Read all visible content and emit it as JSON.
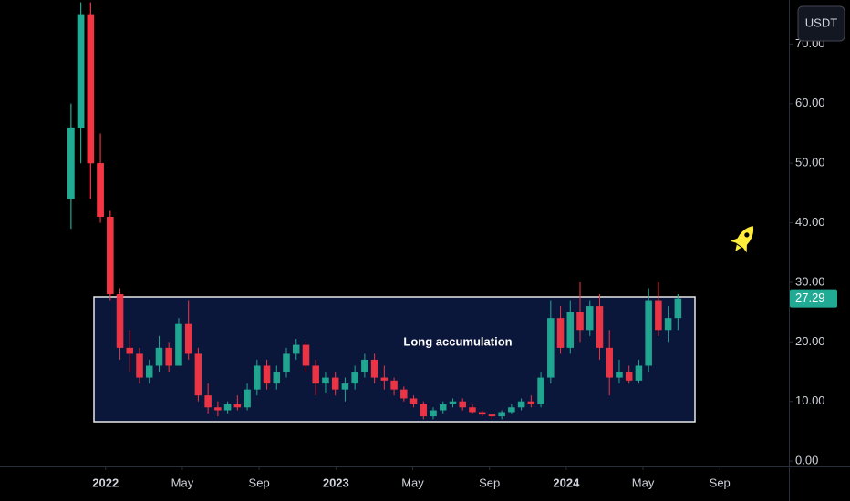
{
  "chart_data": {
    "type": "candlestick",
    "currency": "USDT",
    "annotation": "Long accumulation",
    "up_color": "#22ab94",
    "down_color": "#f23645",
    "x": [
      -1.8,
      -1.29,
      -0.78,
      -0.27,
      0.24,
      0.75,
      1.26,
      1.77,
      2.28,
      2.79,
      3.3,
      3.81,
      4.32,
      4.83,
      5.34,
      5.85,
      6.36,
      6.87,
      7.38,
      7.89,
      8.4,
      8.91,
      9.42,
      9.93,
      10.44,
      10.95,
      11.46,
      11.97,
      12.48,
      12.99,
      13.5,
      14.01,
      14.52,
      15.03,
      15.54,
      16.05,
      16.56,
      17.07,
      17.58,
      18.09,
      18.6,
      19.11,
      19.62,
      20.13,
      20.64,
      21.15,
      21.66,
      22.17,
      22.68,
      23.19,
      23.7,
      24.21,
      24.72,
      25.23,
      25.74,
      26.25,
      26.76,
      27.27,
      27.78,
      28.29,
      28.8,
      29.31,
      29.82
    ],
    "open": [
      44,
      56,
      75,
      50,
      41,
      28,
      19,
      18,
      14,
      16,
      19,
      16,
      23,
      18,
      11,
      9,
      8.5,
      9.5,
      9,
      12,
      16,
      13,
      15,
      18,
      19.5,
      16,
      13,
      14,
      12,
      13,
      15,
      17,
      14,
      13.5,
      12,
      10.5,
      9.5,
      7.5,
      8.5,
      9.5,
      10,
      9,
      8.2,
      7.8,
      7.5,
      8.2,
      9,
      10,
      9.5,
      14,
      24,
      19,
      25,
      22,
      26,
      19,
      14,
      15,
      13.5,
      16,
      27,
      22,
      24
    ],
    "high": [
      60,
      77,
      77,
      55,
      42,
      29,
      22,
      19,
      17,
      21,
      20,
      24,
      27,
      19,
      13,
      10,
      10,
      11,
      13,
      17,
      17,
      16,
      19,
      20.5,
      20,
      17,
      15,
      15,
      14,
      16,
      18,
      18,
      16,
      14,
      12.5,
      11,
      10,
      9,
      10,
      10.5,
      10.5,
      9.5,
      8.5,
      8,
      8.5,
      9.5,
      10.5,
      11,
      15,
      27,
      26,
      27,
      30,
      27,
      28,
      22,
      17,
      16,
      17,
      29,
      30,
      26,
      28
    ],
    "low": [
      39,
      50,
      44,
      40,
      27,
      17,
      15,
      13,
      13,
      15,
      15,
      16,
      17,
      10,
      8,
      7.5,
      8,
      8.5,
      8.5,
      11,
      12,
      12,
      14,
      17,
      15,
      11,
      11.5,
      11,
      10,
      12,
      14,
      13,
      12,
      11,
      10,
      9,
      7,
      7,
      8,
      9,
      8.5,
      8,
      7.5,
      7,
      7,
      8,
      8.5,
      9,
      9,
      13,
      18,
      18,
      20,
      21,
      17,
      11,
      13,
      13,
      13,
      15,
      21,
      20,
      22
    ],
    "close": [
      56,
      75,
      50,
      41,
      28,
      19,
      18,
      14,
      16,
      19,
      16,
      23,
      18,
      11,
      9,
      8.5,
      9.5,
      9,
      12,
      16,
      13,
      15,
      18,
      19.5,
      16,
      13,
      14,
      12,
      13,
      15,
      17,
      14,
      13.5,
      12,
      10.5,
      9.5,
      7.5,
      8.5,
      9.5,
      10,
      9,
      8.2,
      7.8,
      7.5,
      8.2,
      9,
      10,
      9.5,
      14,
      24,
      19,
      25,
      22,
      26,
      19,
      14,
      15,
      13.5,
      16,
      27,
      22,
      24,
      27.29
    ],
    "xlim": [
      -5.5,
      35.6
    ],
    "xticks": [
      {
        "value": 0,
        "label": "2022"
      },
      {
        "value": 4,
        "label": "May"
      },
      {
        "value": 8,
        "label": "Sep"
      },
      {
        "value": 12,
        "label": "2023"
      },
      {
        "value": 16,
        "label": "May"
      },
      {
        "value": 20,
        "label": "Sep"
      },
      {
        "value": 24,
        "label": "2024"
      },
      {
        "value": 28,
        "label": "May"
      },
      {
        "value": 32,
        "label": "Sep"
      }
    ],
    "ylim": [
      -0.9,
      77.4
    ],
    "yticks": [
      {
        "value": 0,
        "label": "0.00"
      },
      {
        "value": 10,
        "label": "10.00"
      },
      {
        "value": 20,
        "label": "20.00"
      },
      {
        "value": 30,
        "label": "30.00"
      },
      {
        "value": 40,
        "label": "40.00"
      },
      {
        "value": 50,
        "label": "50.00"
      },
      {
        "value": 60,
        "label": "60.00"
      },
      {
        "value": 70,
        "label": "70.00"
      }
    ]
  }
}
